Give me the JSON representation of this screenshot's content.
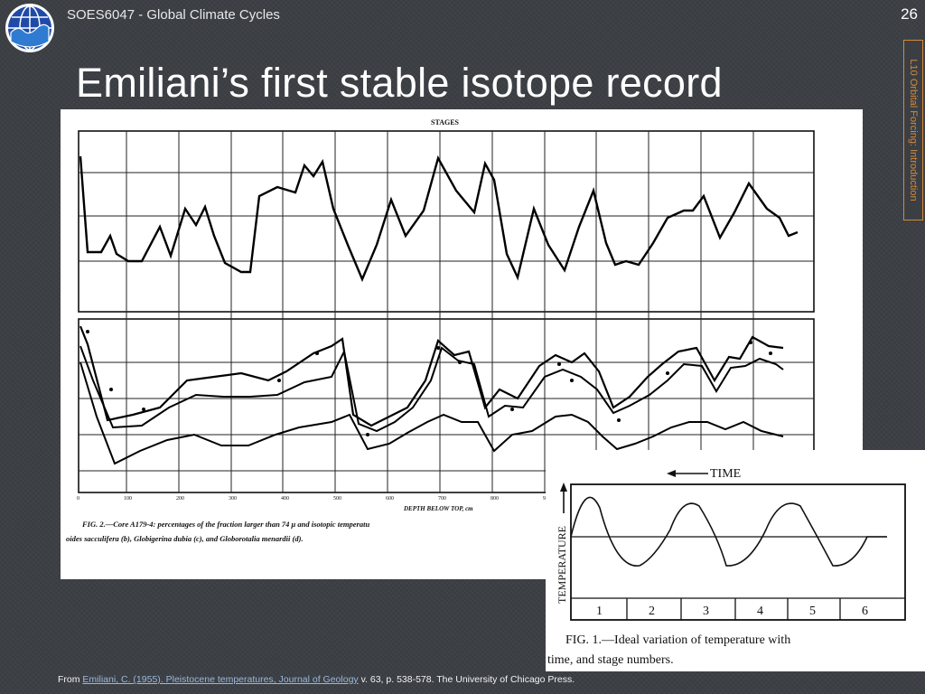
{
  "header": {
    "course_title": "SOES6047 - Global Climate Cycles",
    "slide_number": "26",
    "side_tab": "L10 Orbital Forcing: Introduction"
  },
  "slide": {
    "title": "Emiliani’s first stable isotope record"
  },
  "figure2": {
    "stages_label": "STAGES",
    "x_axis_label": "DEPTH BELOW TOP, cm",
    "caption_line1": "FIG. 2.—Core A179-4: percentages of the fraction larger than 74 μ and isotopic temperatu",
    "caption_line2": "oides sacculifera (b), Globigerina dubia (c), and Globorotalia menardii (d)."
  },
  "figure1": {
    "time_label": "TIME",
    "temperature_label": "TEMPERATURE",
    "stage_numbers": [
      "1",
      "2",
      "3",
      "4",
      "5",
      "6"
    ],
    "caption_line1": "FIG. 1.—Ideal variation of temperature with",
    "caption_line2": "time, and stage numbers."
  },
  "citation": {
    "prefix": "From ",
    "link_text": "Emiliani, C. (1955). Pleistocene temperatures, Journal of Geology",
    "suffix": " v. 63, p. 538-578. The University of Chicago Press."
  },
  "colors": {
    "background": "#3b3f44",
    "accent_orange": "#d4893a",
    "link_blue": "#9bb7dd"
  },
  "icons": {
    "logo": "globe-wave-logo-icon"
  }
}
